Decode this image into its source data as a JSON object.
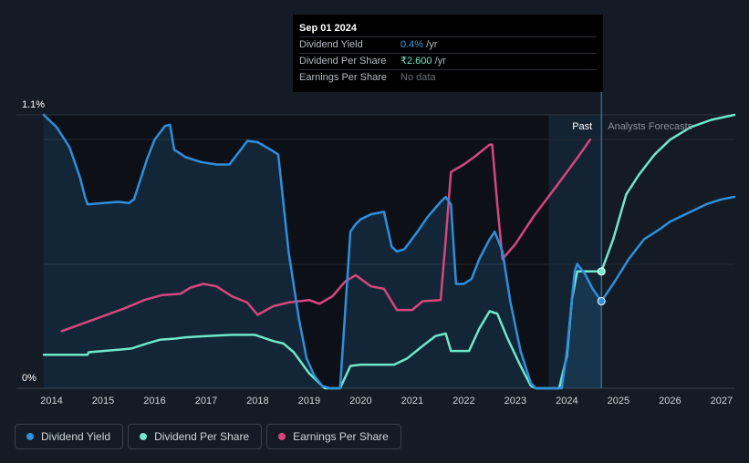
{
  "tooltip": {
    "date": "Sep 01 2024",
    "rows": [
      {
        "name": "Dividend Yield",
        "value": "0.4%",
        "unit": "/yr"
      },
      {
        "name": "Dividend Per Share",
        "value": "₹2.600",
        "unit": "/yr"
      },
      {
        "name": "Earnings Per Share",
        "value": "No data",
        "unit": ""
      }
    ]
  },
  "regions": {
    "past_label": "Past",
    "forecast_label": "Analysts Forecasts"
  },
  "legend": [
    {
      "label": "Dividend Yield",
      "color": "#2f8fdc"
    },
    {
      "label": "Dividend Per Share",
      "color": "#6fe8cc"
    },
    {
      "label": "Earnings Per Share",
      "color": "#d6467f"
    }
  ],
  "chart_data": {
    "type": "line",
    "y_tick_labels": [
      "1.1%",
      "0%"
    ],
    "ylim_percent": [
      0,
      1.1
    ],
    "x_tick_labels": [
      "2014",
      "2015",
      "2016",
      "2017",
      "2018",
      "2019",
      "2020",
      "2021",
      "2022",
      "2023",
      "2024",
      "2025",
      "2026",
      "2027"
    ],
    "xlim": [
      2013.85,
      2027.25
    ],
    "today": 2024.67,
    "forecast_shade_start": 2023.65,
    "series": [
      {
        "name": "Dividend Yield",
        "color": "#2f8fdc",
        "unit": "percent",
        "points": [
          [
            2013.85,
            1.1
          ],
          [
            2014.1,
            1.05
          ],
          [
            2014.35,
            0.97
          ],
          [
            2014.55,
            0.85
          ],
          [
            2014.65,
            0.77
          ],
          [
            2014.7,
            0.74
          ],
          [
            2015.0,
            0.745
          ],
          [
            2015.3,
            0.75
          ],
          [
            2015.5,
            0.745
          ],
          [
            2015.6,
            0.76
          ],
          [
            2015.85,
            0.92
          ],
          [
            2016.0,
            1.0
          ],
          [
            2016.2,
            1.055
          ],
          [
            2016.3,
            1.06
          ],
          [
            2016.38,
            0.96
          ],
          [
            2016.6,
            0.93
          ],
          [
            2016.9,
            0.91
          ],
          [
            2017.2,
            0.9
          ],
          [
            2017.45,
            0.9
          ],
          [
            2017.6,
            0.94
          ],
          [
            2017.8,
            0.995
          ],
          [
            2018.0,
            0.99
          ],
          [
            2018.25,
            0.96
          ],
          [
            2018.4,
            0.94
          ],
          [
            2018.6,
            0.55
          ],
          [
            2018.8,
            0.28
          ],
          [
            2018.95,
            0.12
          ],
          [
            2019.1,
            0.05
          ],
          [
            2019.25,
            0.01
          ],
          [
            2019.4,
            0.0
          ],
          [
            2019.6,
            0.0
          ],
          [
            2019.8,
            0.63
          ],
          [
            2019.9,
            0.66
          ],
          [
            2020.0,
            0.68
          ],
          [
            2020.2,
            0.7
          ],
          [
            2020.45,
            0.71
          ],
          [
            2020.6,
            0.57
          ],
          [
            2020.7,
            0.55
          ],
          [
            2020.85,
            0.56
          ],
          [
            2021.1,
            0.63
          ],
          [
            2021.3,
            0.69
          ],
          [
            2021.55,
            0.75
          ],
          [
            2021.65,
            0.77
          ],
          [
            2021.75,
            0.74
          ],
          [
            2021.85,
            0.42
          ],
          [
            2022.0,
            0.42
          ],
          [
            2022.15,
            0.44
          ],
          [
            2022.3,
            0.52
          ],
          [
            2022.5,
            0.6
          ],
          [
            2022.6,
            0.63
          ],
          [
            2022.75,
            0.55
          ],
          [
            2022.9,
            0.35
          ],
          [
            2023.1,
            0.15
          ],
          [
            2023.3,
            0.02
          ],
          [
            2023.4,
            0.0
          ],
          [
            2023.9,
            0.0
          ],
          [
            2024.0,
            0.15
          ],
          [
            2024.15,
            0.47
          ],
          [
            2024.2,
            0.5
          ],
          [
            2024.35,
            0.46
          ],
          [
            2024.5,
            0.4
          ],
          [
            2024.67,
            0.35
          ],
          [
            2024.9,
            0.42
          ],
          [
            2025.2,
            0.52
          ],
          [
            2025.5,
            0.6
          ],
          [
            2025.8,
            0.64
          ],
          [
            2026.0,
            0.67
          ],
          [
            2026.4,
            0.71
          ],
          [
            2026.7,
            0.74
          ],
          [
            2027.0,
            0.76
          ],
          [
            2027.25,
            0.77
          ]
        ]
      },
      {
        "name": "Dividend Per Share",
        "color": "#6fe8cc",
        "unit": "relative",
        "points": [
          [
            2013.85,
            0.135
          ],
          [
            2014.7,
            0.135
          ],
          [
            2014.72,
            0.145
          ],
          [
            2015.0,
            0.15
          ],
          [
            2015.3,
            0.155
          ],
          [
            2015.55,
            0.16
          ],
          [
            2015.85,
            0.18
          ],
          [
            2016.1,
            0.195
          ],
          [
            2016.4,
            0.2
          ],
          [
            2016.6,
            0.205
          ],
          [
            2017.0,
            0.21
          ],
          [
            2017.5,
            0.215
          ],
          [
            2017.95,
            0.215
          ],
          [
            2018.3,
            0.19
          ],
          [
            2018.5,
            0.18
          ],
          [
            2018.7,
            0.145
          ],
          [
            2019.0,
            0.06
          ],
          [
            2019.3,
            0.0
          ],
          [
            2019.6,
            0.0
          ],
          [
            2019.8,
            0.09
          ],
          [
            2020.0,
            0.095
          ],
          [
            2020.4,
            0.095
          ],
          [
            2020.65,
            0.095
          ],
          [
            2020.9,
            0.12
          ],
          [
            2021.2,
            0.17
          ],
          [
            2021.45,
            0.21
          ],
          [
            2021.65,
            0.22
          ],
          [
            2021.75,
            0.15
          ],
          [
            2022.1,
            0.15
          ],
          [
            2022.3,
            0.24
          ],
          [
            2022.5,
            0.31
          ],
          [
            2022.65,
            0.3
          ],
          [
            2022.85,
            0.2
          ],
          [
            2023.1,
            0.09
          ],
          [
            2023.3,
            0.01
          ],
          [
            2023.4,
            0.0
          ],
          [
            2023.85,
            0.0
          ],
          [
            2024.0,
            0.13
          ],
          [
            2024.1,
            0.36
          ],
          [
            2024.2,
            0.47
          ],
          [
            2024.67,
            0.47
          ],
          [
            2024.9,
            0.6
          ],
          [
            2025.15,
            0.78
          ],
          [
            2025.4,
            0.86
          ],
          [
            2025.7,
            0.94
          ],
          [
            2026.0,
            1.0
          ],
          [
            2026.4,
            1.05
          ],
          [
            2026.8,
            1.08
          ],
          [
            2027.25,
            1.1
          ]
        ]
      },
      {
        "name": "Earnings Per Share",
        "color": "#d6467f",
        "unit": "relative",
        "points": [
          [
            2014.2,
            0.23
          ],
          [
            2014.6,
            0.26
          ],
          [
            2015.0,
            0.29
          ],
          [
            2015.4,
            0.32
          ],
          [
            2015.8,
            0.355
          ],
          [
            2016.15,
            0.375
          ],
          [
            2016.5,
            0.38
          ],
          [
            2016.7,
            0.405
          ],
          [
            2016.95,
            0.42
          ],
          [
            2017.2,
            0.41
          ],
          [
            2017.5,
            0.37
          ],
          [
            2017.8,
            0.345
          ],
          [
            2018.0,
            0.295
          ],
          [
            2018.3,
            0.33
          ],
          [
            2018.6,
            0.345
          ],
          [
            2019.0,
            0.355
          ],
          [
            2019.2,
            0.34
          ],
          [
            2019.45,
            0.37
          ],
          [
            2019.7,
            0.43
          ],
          [
            2019.9,
            0.455
          ],
          [
            2020.2,
            0.41
          ],
          [
            2020.45,
            0.4
          ],
          [
            2020.7,
            0.315
          ],
          [
            2021.0,
            0.315
          ],
          [
            2021.2,
            0.35
          ],
          [
            2021.55,
            0.355
          ],
          [
            2021.65,
            0.6
          ],
          [
            2021.75,
            0.87
          ],
          [
            2022.0,
            0.9
          ],
          [
            2022.2,
            0.93
          ],
          [
            2022.5,
            0.98
          ],
          [
            2022.55,
            0.98
          ],
          [
            2022.65,
            0.74
          ],
          [
            2022.75,
            0.52
          ],
          [
            2023.0,
            0.58
          ],
          [
            2023.35,
            0.69
          ],
          [
            2023.75,
            0.8
          ],
          [
            2024.0,
            0.87
          ],
          [
            2024.25,
            0.94
          ],
          [
            2024.45,
            1.0
          ]
        ]
      }
    ]
  }
}
